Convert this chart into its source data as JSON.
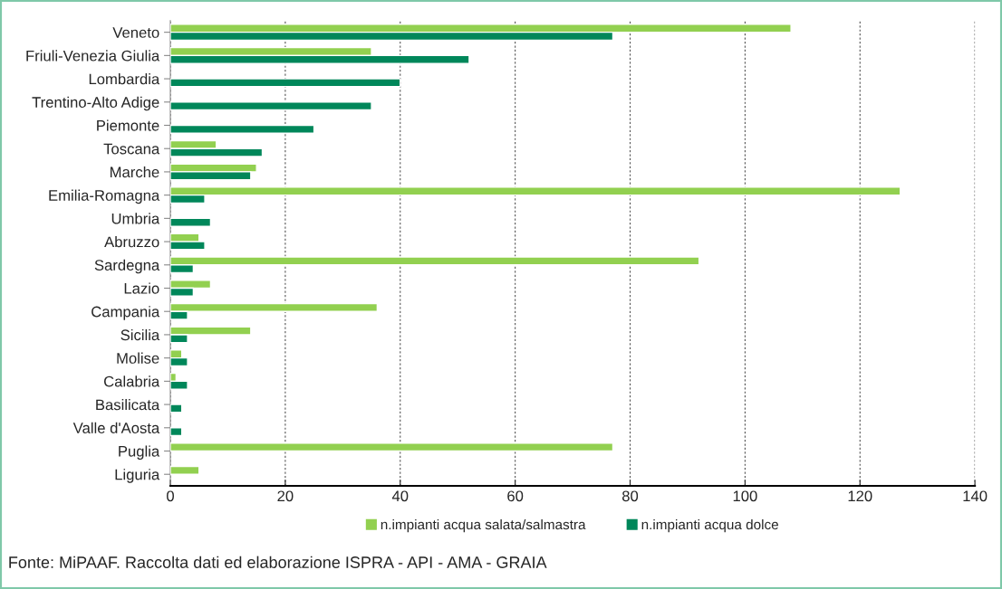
{
  "chart_data": {
    "type": "bar",
    "orientation": "horizontal",
    "categories": [
      "Veneto",
      "Friuli-Venezia Giulia",
      "Lombardia",
      "Trentino-Alto Adige",
      "Piemonte",
      "Toscana",
      "Marche",
      "Emilia-Romagna",
      "Umbria",
      "Abruzzo",
      "Sardegna",
      "Lazio",
      "Campania",
      "Sicilia",
      "Molise",
      "Calabria",
      "Basilicata",
      "Valle d'Aosta",
      "Puglia",
      "Liguria"
    ],
    "series": [
      {
        "name": "n.impianti acqua salata/salmastra",
        "color": "#92d050",
        "values": [
          108,
          35,
          null,
          null,
          null,
          8,
          15,
          127,
          null,
          5,
          92,
          7,
          36,
          14,
          2,
          1,
          null,
          null,
          77,
          5
        ]
      },
      {
        "name": "n.impianti acqua dolce",
        "color": "#00875a",
        "values": [
          77,
          52,
          40,
          35,
          25,
          16,
          14,
          6,
          7,
          6,
          4,
          4,
          3,
          3,
          3,
          3,
          2,
          2,
          null,
          null
        ]
      }
    ],
    "xlim": [
      0,
      140
    ],
    "xticks": [
      0,
      20,
      40,
      60,
      80,
      100,
      120,
      140
    ],
    "grid": "x",
    "legend": "bottom",
    "annotations": [
      "Fonte: MiPAAF. Raccolta dati ed elaborazione ISPRA - API - AMA - GRAIA"
    ]
  }
}
